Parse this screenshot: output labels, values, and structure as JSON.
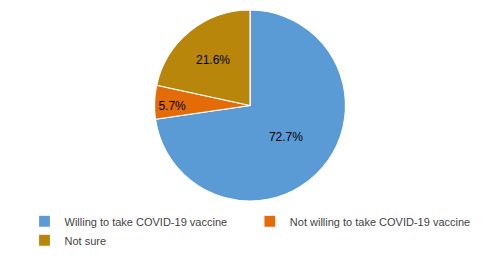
{
  "chart_data": {
    "type": "pie",
    "categories": [
      "Willing to take COVID-19 vaccine",
      "Not willing to take COVID-19 vaccine",
      "Not sure"
    ],
    "values": [
      72.7,
      5.7,
      21.6
    ],
    "value_labels": [
      "72.7%",
      "5.7%",
      "21.6%"
    ],
    "data_labels": true,
    "colors": [
      "#5B9BD5",
      "#E36C09",
      "#B8860B"
    ],
    "legend": "bottom"
  }
}
